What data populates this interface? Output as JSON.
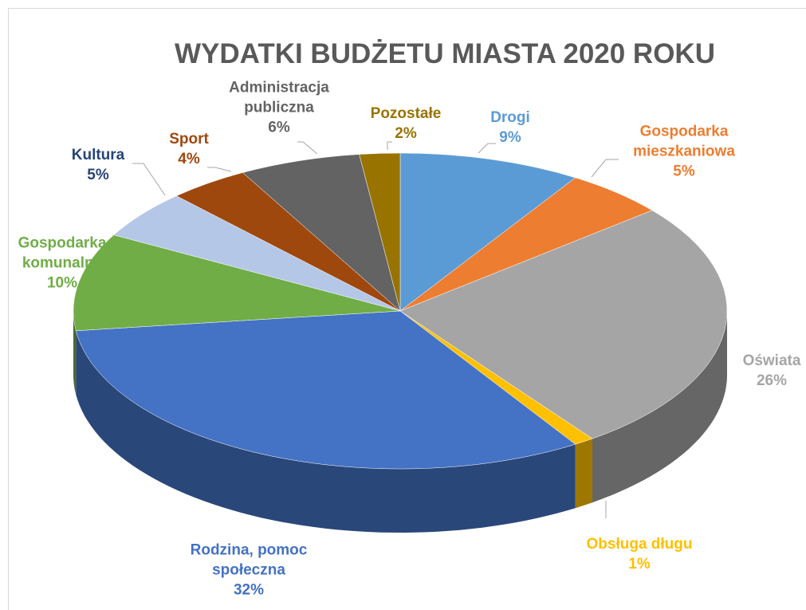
{
  "chart_data": {
    "type": "pie3d",
    "title": "WYDATKI BUDŻETU MIASTA 2020 ROKU",
    "categories": [
      "Drogi",
      "Gospodarka mieszkaniowa",
      "Oświata",
      "Obsługa długu",
      "Rodzina, pomoc społeczna",
      "Gospodarka komunalna",
      "Kultura",
      "Sport",
      "Administracja publiczna",
      "Pozostałe"
    ],
    "values": [
      9,
      5,
      26,
      1,
      32,
      10,
      5,
      4,
      6,
      2
    ],
    "value_labels": [
      "9%",
      "5%",
      "26%",
      "1%",
      "32%",
      "10%",
      "5%",
      "4%",
      "6%",
      "2%"
    ],
    "colors": [
      "#5b9bd5",
      "#ed7d31",
      "#a5a5a5",
      "#ffc000",
      "#4472c4",
      "#70ad47",
      "#b4c7e7",
      "#9e480e",
      "#636363",
      "#997300"
    ],
    "label_colors": [
      "#5b9bd5",
      "#ed7d31",
      "#a5a5a5",
      "#ffc000",
      "#4472c4",
      "#70ad47",
      "#264478",
      "#9e480e",
      "#636363",
      "#997300"
    ]
  }
}
